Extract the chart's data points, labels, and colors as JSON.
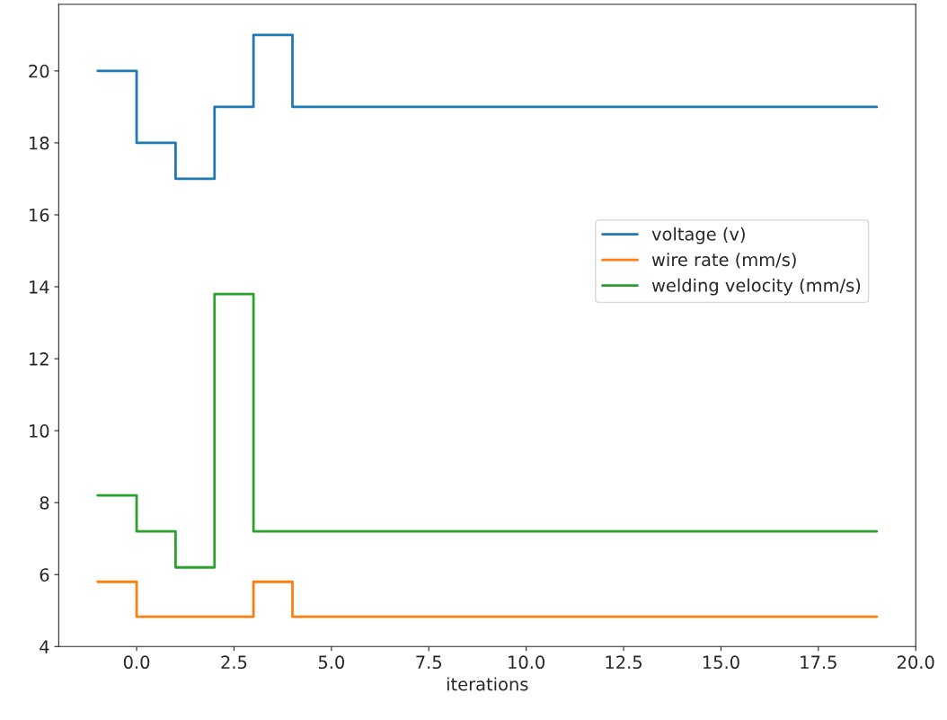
{
  "chart_data": {
    "type": "step",
    "xlabel": "iterations",
    "x": [
      -1,
      0,
      1,
      2,
      3,
      4,
      5,
      6,
      7,
      8,
      9,
      10,
      11,
      12,
      13,
      14,
      15,
      16,
      17,
      18,
      19
    ],
    "series": [
      {
        "name": "voltage (v)",
        "color": "#1f77b4",
        "values": [
          20,
          18,
          17,
          19,
          21,
          19,
          19,
          19,
          19,
          19,
          19,
          19,
          19,
          19,
          19,
          19,
          19,
          19,
          19,
          19,
          19
        ]
      },
      {
        "name": "wire rate (mm/s)",
        "color": "#ff7f0e",
        "values": [
          5.8,
          4.83,
          4.83,
          4.83,
          5.8,
          4.83,
          4.83,
          4.83,
          4.83,
          4.83,
          4.83,
          4.83,
          4.83,
          4.83,
          4.83,
          4.83,
          4.83,
          4.83,
          4.83,
          4.83,
          4.83
        ]
      },
      {
        "name": "welding velocity (mm/s)",
        "color": "#2ca02c",
        "values": [
          8.2,
          7.2,
          6.2,
          13.8,
          7.2,
          7.2,
          7.2,
          7.2,
          7.2,
          7.2,
          7.2,
          7.2,
          7.2,
          7.2,
          7.2,
          7.2,
          7.2,
          7.2,
          7.2,
          7.2,
          7.2
        ]
      }
    ],
    "xlim": [
      -2,
      20
    ],
    "xticks": [
      {
        "value": 0,
        "label": "0.0"
      },
      {
        "value": 2.5,
        "label": "2.5"
      },
      {
        "value": 5,
        "label": "5.0"
      },
      {
        "value": 7.5,
        "label": "7.5"
      },
      {
        "value": 10,
        "label": "10.0"
      },
      {
        "value": 12.5,
        "label": "12.5"
      },
      {
        "value": 15,
        "label": "15.0"
      },
      {
        "value": 17.5,
        "label": "17.5"
      },
      {
        "value": 20,
        "label": "20.0"
      }
    ],
    "ylim": [
      4,
      21.85
    ],
    "yticks": [
      4,
      6,
      8,
      10,
      12,
      14,
      16,
      18,
      20
    ],
    "legend": "right",
    "grid": false
  }
}
